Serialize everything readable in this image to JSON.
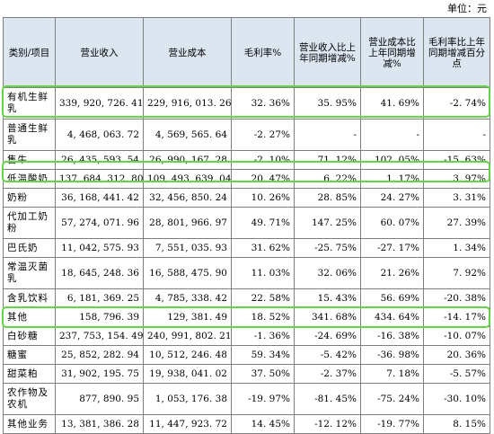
{
  "unit_label": "单位：元",
  "headers": {
    "category": "类别/项目",
    "revenue": "营业收入",
    "cost": "营业成本",
    "gross_margin": "毛利率%",
    "revenue_yoy": "营业收入比上年同期增减%",
    "cost_yoy": "营业成本比上年同期增减%",
    "margin_yoy": "毛利率比上年同期增减百分点"
  },
  "highlight_color": "#66d447",
  "header_bg": "#dce6f1",
  "rows": [
    {
      "name": "有机生鲜乳",
      "revenue": "339, 920, 726. 41",
      "cost": "229, 916, 013. 26",
      "margin": "32. 36%",
      "rev_yoy": "35. 95%",
      "cost_yoy": "41. 69%",
      "margin_yoy": "-2. 74%"
    },
    {
      "name": "普通生鲜乳",
      "revenue": "4, 468, 063. 72",
      "cost": "4, 569, 565. 64",
      "margin": "-2. 27%",
      "rev_yoy": "-",
      "cost_yoy": "-",
      "margin_yoy": "-"
    },
    {
      "name": "售牛",
      "revenue": "26, 435, 593. 54",
      "cost": "26, 990, 167. 28",
      "margin": "-2. 10%",
      "rev_yoy": "71. 12%",
      "cost_yoy": "102. 05%",
      "margin_yoy": "-15. 63%"
    },
    {
      "name": "低温酸奶",
      "revenue": "137, 684, 312. 80",
      "cost": "109, 493, 639. 04",
      "margin": "20. 47%",
      "rev_yoy": "6. 22%",
      "cost_yoy": "1. 17%",
      "margin_yoy": "3. 97%"
    },
    {
      "name": "奶粉",
      "revenue": "36, 168, 441. 42",
      "cost": "32, 456, 850. 24",
      "margin": "10. 26%",
      "rev_yoy": "28. 85%",
      "cost_yoy": "24. 27%",
      "margin_yoy": "3. 31%"
    },
    {
      "name": "代加工奶粉",
      "revenue": "57, 274, 071. 96",
      "cost": "28, 801, 966. 97",
      "margin": "49. 71%",
      "rev_yoy": "147. 25%",
      "cost_yoy": "60. 07%",
      "margin_yoy": "27. 39%"
    },
    {
      "name": "巴氏奶",
      "revenue": "11, 042, 575. 93",
      "cost": "7, 551, 035. 93",
      "margin": "31. 62%",
      "rev_yoy": "-25. 75%",
      "cost_yoy": "-27. 17%",
      "margin_yoy": "1. 34%"
    },
    {
      "name": "常温灭菌乳",
      "revenue": "18, 645, 248. 36",
      "cost": "16, 588, 475. 90",
      "margin": "11. 03%",
      "rev_yoy": "32. 06%",
      "cost_yoy": "21. 26%",
      "margin_yoy": "7. 92%"
    },
    {
      "name": "含乳饮料",
      "revenue": "6, 181, 369. 25",
      "cost": "4, 785, 338. 42",
      "margin": "22. 58%",
      "rev_yoy": "15. 43%",
      "cost_yoy": "56. 69%",
      "margin_yoy": "-20. 38%"
    },
    {
      "name": "其他",
      "revenue": "158, 796. 39",
      "cost": "129, 381. 49",
      "margin": "18. 52%",
      "rev_yoy": "341. 68%",
      "cost_yoy": "434. 64%",
      "margin_yoy": "-14. 17%"
    },
    {
      "name": "白砂糖",
      "revenue": "237, 753, 154. 49",
      "cost": "240, 991, 802. 21",
      "margin": "-1. 36%",
      "rev_yoy": "-24. 69%",
      "cost_yoy": "-16. 38%",
      "margin_yoy": "-10. 07%"
    },
    {
      "name": "糖蜜",
      "revenue": "25, 852, 282. 94",
      "cost": "10, 512, 246. 48",
      "margin": "59. 34%",
      "rev_yoy": "-5. 42%",
      "cost_yoy": "-36. 98%",
      "margin_yoy": "20. 36%"
    },
    {
      "name": "甜菜粕",
      "revenue": "31, 902, 195. 75",
      "cost": "19, 938, 041. 02",
      "margin": "37. 50%",
      "rev_yoy": "-2. 37%",
      "cost_yoy": "7. 18%",
      "margin_yoy": "-5. 57%"
    },
    {
      "name": "农作物及农机",
      "revenue": "877, 890. 95",
      "cost": "1, 053, 176. 38",
      "margin": "-19. 97%",
      "rev_yoy": "-81. 45%",
      "cost_yoy": "-75. 24%",
      "margin_yoy": "-30. 10%"
    },
    {
      "name": "其他业务",
      "revenue": "13, 381, 386. 28",
      "cost": "11, 447, 923. 72",
      "margin": "14. 45%",
      "rev_yoy": "-12. 12%",
      "cost_yoy": "-19. 77%",
      "margin_yoy": "8. 15%"
    }
  ]
}
